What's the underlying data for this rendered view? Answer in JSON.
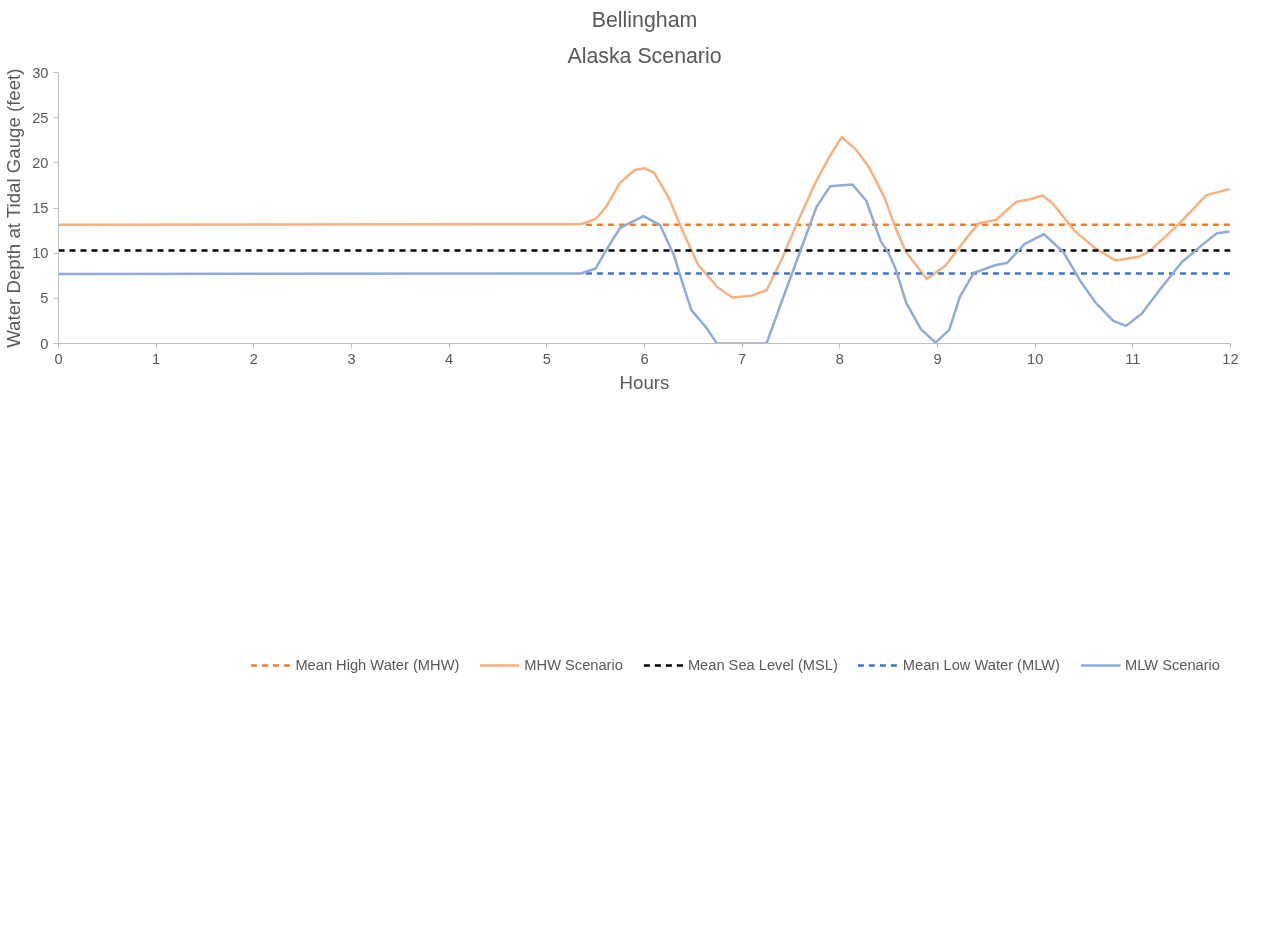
{
  "chart_data": {
    "type": "line",
    "title": "Bellingham",
    "subtitle": "Alaska Scenario",
    "xlabel": "Hours",
    "ylabel": "Water Depth at Tidal Gauge (feet)",
    "xlim": [
      0,
      12
    ],
    "xticks": [
      0,
      1,
      2,
      3,
      4,
      5,
      6,
      7,
      8,
      9,
      10,
      11,
      12
    ],
    "ylim": [
      0,
      30
    ],
    "yticks": [
      0,
      5,
      10,
      15,
      20,
      25,
      30
    ],
    "grid": false,
    "legend": "bottom",
    "marker": "none",
    "series": [
      {
        "name": "Mean High Water (MHW)",
        "color": "#ed7d31",
        "line_style": "dashed",
        "x": [
          5.4,
          12
        ],
        "values": [
          13.15,
          13.15
        ]
      },
      {
        "name": "MHW Scenario",
        "color": "#f4b183",
        "line_style": "solid",
        "x": [
          0,
          5.35,
          5.5,
          5.6,
          5.75,
          5.9,
          6.0,
          6.1,
          6.25,
          6.4,
          6.55,
          6.75,
          6.9,
          7.1,
          7.25,
          7.4,
          7.55,
          7.75,
          7.9,
          8.02,
          8.17,
          8.3,
          8.46,
          8.57,
          8.68,
          8.89,
          9.08,
          9.27,
          9.42,
          9.6,
          9.81,
          9.96,
          10.07,
          10.18,
          10.4,
          10.62,
          10.82,
          11.06,
          11.17,
          11.46,
          11.75,
          11.99
        ],
        "values": [
          13.15,
          13.2,
          13.8,
          15,
          17.8,
          19.2,
          19.4,
          18.9,
          16.1,
          12.2,
          8.7,
          6.2,
          5.1,
          5.3,
          5.9,
          9.2,
          13,
          17.8,
          20.8,
          22.85,
          21.4,
          19.5,
          16.1,
          12.8,
          10.1,
          7.15,
          8.6,
          11.3,
          13.3,
          13.7,
          15.7,
          16.0,
          16.4,
          15.5,
          12.5,
          10.5,
          9.2,
          9.6,
          10.2,
          13.1,
          16.4,
          17.1
        ]
      },
      {
        "name": "Mean Sea Level (MSL)",
        "color": "#000000",
        "line_style": "dashed",
        "x": [
          0,
          12
        ],
        "values": [
          10.3,
          10.3
        ]
      },
      {
        "name": "Mean Low Water (MLW)",
        "color": "#4472c4",
        "line_style": "dashed",
        "x": [
          5.4,
          12
        ],
        "values": [
          7.75,
          7.75
        ]
      },
      {
        "name": "MLW Scenario",
        "color": "#8faadc",
        "line_style": "solid",
        "x": [
          0,
          5.35,
          5.5,
          5.6,
          5.75,
          5.99,
          6.16,
          6.3,
          6.41,
          6.48,
          6.63,
          6.74,
          7.25,
          7.4,
          7.58,
          7.76,
          7.9,
          8.13,
          8.27,
          8.42,
          8.5,
          8.57,
          8.68,
          8.83,
          8.98,
          9.12,
          9.23,
          9.37,
          9.6,
          9.71,
          9.89,
          10.09,
          10.29,
          10.47,
          10.62,
          10.8,
          10.93,
          11.09,
          11.28,
          11.5,
          11.72,
          11.86,
          11.99
        ],
        "values": [
          7.7,
          7.75,
          8.3,
          10.2,
          12.8,
          14.1,
          13.1,
          9.8,
          6.0,
          3.7,
          1.8,
          0,
          0,
          4.5,
          9.8,
          15.1,
          17.4,
          17.6,
          15.8,
          11.3,
          10.0,
          8.3,
          4.5,
          1.6,
          0.1,
          1.5,
          5.2,
          7.8,
          8.7,
          8.9,
          11.0,
          12.1,
          10.1,
          6.8,
          4.5,
          2.5,
          1.95,
          3.3,
          6.0,
          9.0,
          11.0,
          12.2,
          12.4
        ]
      }
    ]
  }
}
